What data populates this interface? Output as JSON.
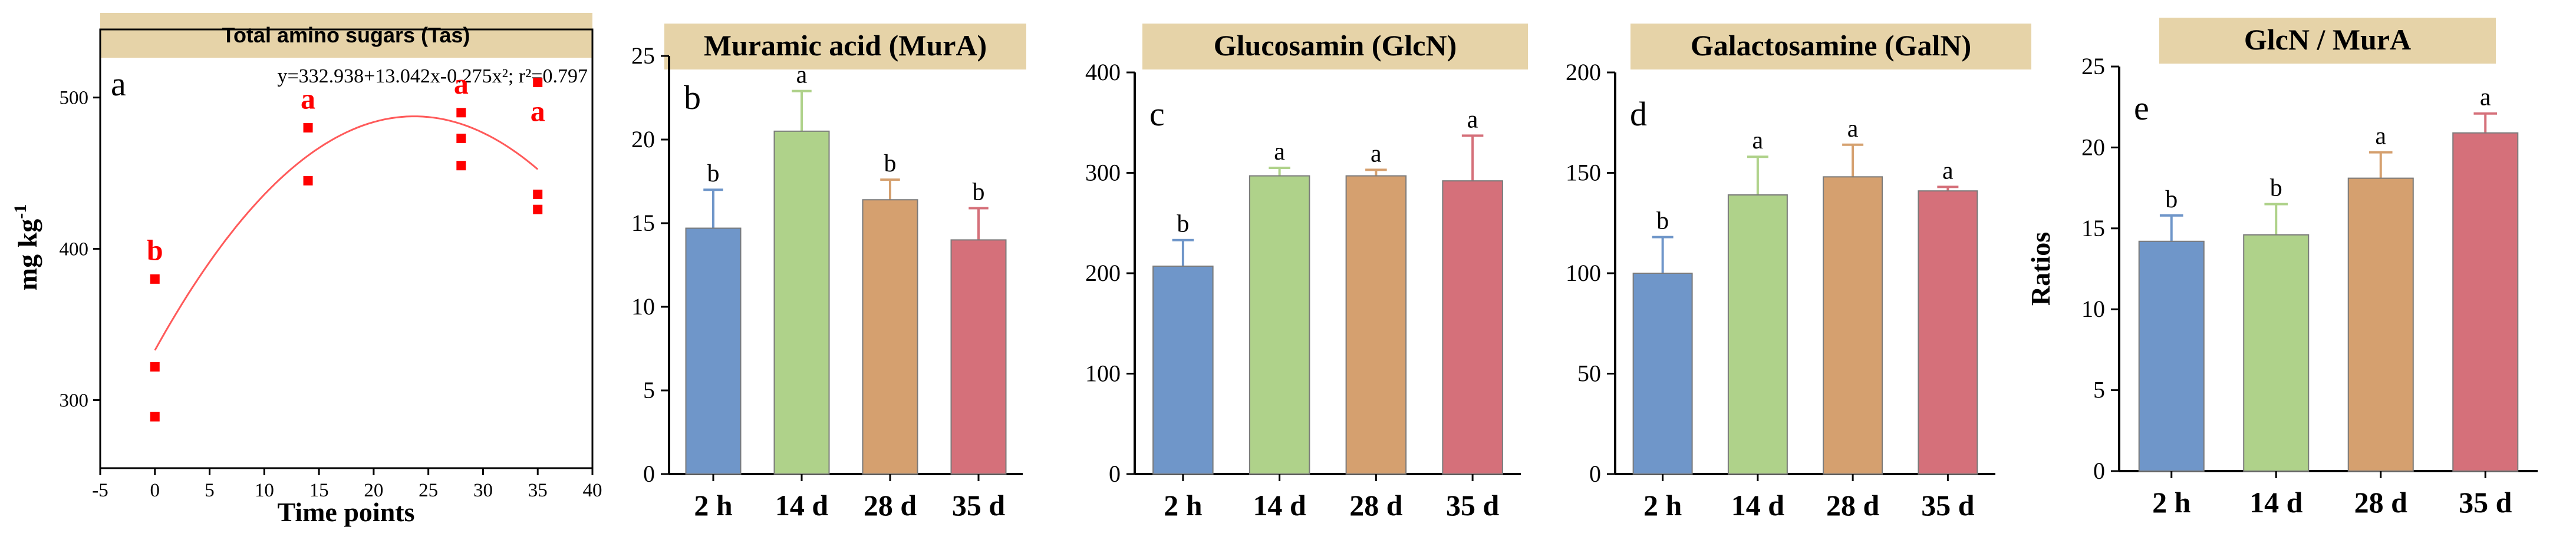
{
  "chart_data": [
    {
      "id": "a",
      "type": "scatter",
      "title": "Total amino sugars (Tas)",
      "panel_letter": "a",
      "xlabel": "Time points",
      "ylabel": "mg kg",
      "ylabel_sup": "-1",
      "equation": "y=332.938+13.042x-0.275x²; r²=0.797",
      "xlim": [
        -5,
        40
      ],
      "ylim": [
        255,
        545
      ],
      "x_ticks": [
        -5,
        0,
        5,
        10,
        15,
        20,
        25,
        30,
        35,
        40
      ],
      "y_ticks": [
        300,
        400,
        500
      ],
      "fit": {
        "a": 332.938,
        "b": 13.042,
        "c": -0.275,
        "x_range": [
          0,
          35
        ]
      },
      "points": [
        {
          "x": 0,
          "y": 380
        },
        {
          "x": 0,
          "y": 322
        },
        {
          "x": 0,
          "y": 289
        },
        {
          "x": 14,
          "y": 480
        },
        {
          "x": 14,
          "y": 445
        },
        {
          "x": 28,
          "y": 490
        },
        {
          "x": 28,
          "y": 473
        },
        {
          "x": 28,
          "y": 455
        },
        {
          "x": 35,
          "y": 510
        },
        {
          "x": 35,
          "y": 436
        },
        {
          "x": 35,
          "y": 426
        }
      ],
      "group_letters": [
        {
          "x": 0,
          "y": 398,
          "label": "b"
        },
        {
          "x": 14,
          "y": 498,
          "label": "a"
        },
        {
          "x": 28,
          "y": 508,
          "label": "a"
        },
        {
          "x": 35,
          "y": 490,
          "label": "a"
        }
      ],
      "colors": {
        "point": "#ff0000",
        "fit": "#ff5a5a",
        "title_bg": "#e6d3a8"
      }
    },
    {
      "id": "b",
      "type": "bar",
      "title": "Muramic acid (MurA)",
      "panel_letter": "b",
      "ylabel": "",
      "categories": [
        "2 h",
        "14 d",
        "28 d",
        "35 d"
      ],
      "values": [
        14.7,
        20.5,
        16.4,
        14.0
      ],
      "errors": [
        2.3,
        2.4,
        1.2,
        1.9
      ],
      "letters": [
        "b",
        "a",
        "b",
        "b"
      ],
      "ylim": [
        0,
        25
      ],
      "y_ticks": [
        0,
        5,
        10,
        15,
        20,
        25
      ]
    },
    {
      "id": "c",
      "type": "bar",
      "title": "Glucosamin (GlcN)",
      "panel_letter": "c",
      "ylabel": "",
      "categories": [
        "2 h",
        "14 d",
        "28 d",
        "35 d"
      ],
      "values": [
        207,
        297,
        297,
        292
      ],
      "errors": [
        26,
        8,
        6,
        45
      ],
      "letters": [
        "b",
        "a",
        "a",
        "a"
      ],
      "ylim": [
        0,
        400
      ],
      "y_ticks": [
        0,
        100,
        200,
        300,
        400
      ]
    },
    {
      "id": "d",
      "type": "bar",
      "title": "Galactosamine (GalN)",
      "panel_letter": "d",
      "ylabel": "",
      "categories": [
        "2 h",
        "14 d",
        "28 d",
        "35 d"
      ],
      "values": [
        100,
        139,
        148,
        141
      ],
      "errors": [
        18,
        19,
        16,
        2
      ],
      "letters": [
        "b",
        "a",
        "a",
        "a"
      ],
      "ylim": [
        0,
        200
      ],
      "y_ticks": [
        0,
        50,
        100,
        150,
        200
      ]
    },
    {
      "id": "e",
      "type": "bar",
      "title": "GlcN / MurA",
      "panel_letter": "e",
      "ylabel": "Ratios",
      "categories": [
        "2 h",
        "14 d",
        "28 d",
        "35 d"
      ],
      "values": [
        14.2,
        14.6,
        18.1,
        20.9
      ],
      "errors": [
        1.6,
        1.9,
        1.6,
        1.2
      ],
      "letters": [
        "b",
        "b",
        "a",
        "a"
      ],
      "ylim": [
        0,
        25
      ],
      "y_ticks": [
        0,
        5,
        10,
        15,
        20,
        25
      ]
    }
  ],
  "colors": {
    "bars": [
      "#6f96c9",
      "#afd28a",
      "#d5a06f",
      "#d5707a"
    ],
    "title_bg": "#e6d3a8",
    "axis": "#000000"
  }
}
